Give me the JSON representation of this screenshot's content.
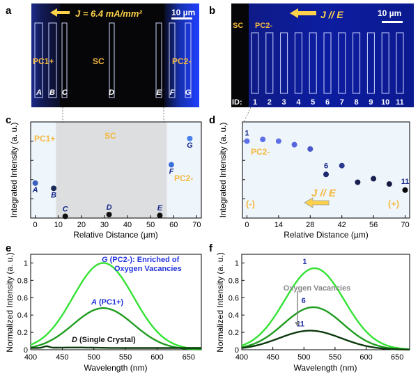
{
  "panels": {
    "a": {
      "letter": "a",
      "current_label": "J = 6.4 mA/mm²",
      "scalebar": "10 µm",
      "regions": {
        "left": "PC1+",
        "center": "SC",
        "right": "PC2-"
      },
      "box_labels": [
        "A",
        "B",
        "C",
        "D",
        "E",
        "F",
        "G"
      ]
    },
    "b": {
      "letter": "b",
      "current_label": "J // E",
      "scalebar": "10 µm",
      "regions": {
        "left": "SC",
        "right": "PC2-"
      },
      "id_prefix": "ID:",
      "box_ids": [
        "1",
        "2",
        "3",
        "4",
        "5",
        "6",
        "7",
        "8",
        "9",
        "10",
        "11"
      ]
    },
    "c": {
      "letter": "c"
    },
    "d": {
      "letter": "d",
      "arrow_label": "J // E",
      "minus": "(-)",
      "plus": "(+)"
    },
    "e": {
      "letter": "e"
    },
    "f": {
      "letter": "f",
      "arrow_label": "Oxygen Vacancies"
    }
  },
  "colors": {
    "pc_blue": "#1a1aff",
    "dark_region": "#060608",
    "label_orange": "#f5b940",
    "light_green": "#33e233",
    "mid_green": "#1e9c1e",
    "dark_green": "#0d3a0d"
  },
  "chart_data": [
    {
      "panel": "c",
      "type": "scatter",
      "xlabel": "Relative Distance (µm)",
      "ylabel": "Integrated Intensity (a. u.)",
      "xlim": [
        -2,
        72
      ],
      "xticks": [
        0,
        10,
        20,
        30,
        40,
        50,
        60,
        70
      ],
      "ylim": [
        0,
        1.1
      ],
      "shaded_region": [
        9,
        57
      ],
      "region_labels": [
        "PC1+",
        "SC",
        "PC2-"
      ],
      "points": [
        {
          "label": "A",
          "x": 0,
          "y": 0.4,
          "color": "#3b5fc0"
        },
        {
          "label": "B",
          "x": 8,
          "y": 0.34,
          "color": "#1a2a5a"
        },
        {
          "label": "C",
          "x": 13,
          "y": 0.02,
          "color": "#111111"
        },
        {
          "label": "D",
          "x": 32,
          "y": 0.04,
          "color": "#111111"
        },
        {
          "label": "E",
          "x": 54,
          "y": 0.03,
          "color": "#111111"
        },
        {
          "label": "F",
          "x": 59,
          "y": 0.61,
          "color": "#3b6fd8"
        },
        {
          "label": "G",
          "x": 67,
          "y": 0.91,
          "color": "#4a80e8"
        }
      ]
    },
    {
      "panel": "d",
      "type": "scatter",
      "xlabel": "Relative Distance (µm)",
      "ylabel": "Integrated Intensity (a. u.)",
      "xlim": [
        -2,
        72
      ],
      "xticks": [
        0,
        14,
        28,
        42,
        56,
        70
      ],
      "ylim": [
        0,
        1.1
      ],
      "region_label": "PC2-",
      "points": [
        {
          "label": "1",
          "x": 0,
          "y": 0.88,
          "color": "#5c6ee8"
        },
        {
          "label": "",
          "x": 7,
          "y": 0.9,
          "color": "#5c6ee8"
        },
        {
          "label": "",
          "x": 14,
          "y": 0.88,
          "color": "#5e70e6"
        },
        {
          "label": "",
          "x": 21,
          "y": 0.84,
          "color": "#5566dd"
        },
        {
          "label": "",
          "x": 28,
          "y": 0.79,
          "color": "#4a58cc"
        },
        {
          "label": "6",
          "x": 35,
          "y": 0.5,
          "color": "#1e2a70"
        },
        {
          "label": "",
          "x": 42,
          "y": 0.6,
          "color": "#2a3a90"
        },
        {
          "label": "",
          "x": 49,
          "y": 0.41,
          "color": "#1a2050"
        },
        {
          "label": "",
          "x": 56,
          "y": 0.45,
          "color": "#1a2050"
        },
        {
          "label": "",
          "x": 63,
          "y": 0.39,
          "color": "#161a40"
        },
        {
          "label": "11",
          "x": 70,
          "y": 0.32,
          "color": "#050505"
        }
      ]
    },
    {
      "panel": "e",
      "type": "line",
      "xlabel": "Wavelength (nm)",
      "ylabel": "Normalized Intensity (a. u.)",
      "xlim": [
        400,
        670
      ],
      "xticks": [
        400,
        450,
        500,
        550,
        600,
        650
      ],
      "ylim": [
        0,
        1.1
      ],
      "yticks": [
        0,
        0.2,
        0.4,
        0.6,
        0.8,
        1
      ],
      "ytick_labels": [
        "0",
        "0.2",
        "0.4",
        "0.6",
        "0.8",
        "1"
      ],
      "series": [
        {
          "label_prefix": "G",
          "label_rest": " (PC2-): Enriched of",
          "label_line2": "Oxygen Vacancies",
          "peak": 1.0,
          "center": 515,
          "width": 48,
          "color": "#33e233"
        },
        {
          "label_prefix": "A",
          "label_rest": " (PC1+)",
          "peak": 0.48,
          "center": 515,
          "width": 48,
          "color": "#1e9c1e"
        },
        {
          "label_prefix": "D",
          "label_rest": " (Single Crystal)",
          "peak": 0.035,
          "center": 515,
          "width": 80,
          "color": "#0d3a0d"
        }
      ]
    },
    {
      "panel": "f",
      "type": "line",
      "xlabel": "Wavelength (nm)",
      "ylabel": "Normalized Intensity (a. u.)",
      "xlim": [
        400,
        670
      ],
      "xticks": [
        400,
        450,
        500,
        550,
        600,
        650
      ],
      "ylim": [
        0,
        1.1
      ],
      "yticks": [
        0,
        0.2,
        0.4,
        0.6,
        0.8,
        1
      ],
      "ytick_labels": [
        "0",
        "0.2",
        "0.4",
        "0.6",
        "0.8",
        "1"
      ],
      "series": [
        {
          "name": "1",
          "peak": 0.94,
          "center": 517,
          "width": 48,
          "color": "#33e233"
        },
        {
          "name": "6",
          "peak": 0.49,
          "center": 515,
          "width": 48,
          "color": "#1e9c1e"
        },
        {
          "name": "11",
          "peak": 0.22,
          "center": 510,
          "width": 50,
          "color": "#0d3a0d"
        }
      ]
    }
  ]
}
